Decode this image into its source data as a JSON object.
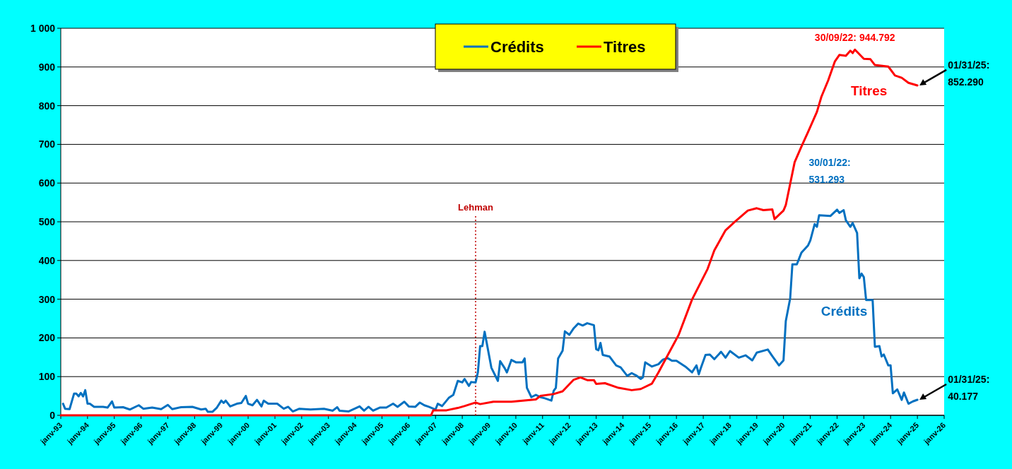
{
  "chart_data": {
    "type": "line",
    "xlim": [
      "1993-01",
      "2026-01"
    ],
    "xticks": [
      {
        "value": "1993-01",
        "label": "janv-93"
      },
      {
        "value": "1994-01",
        "label": "janv-94"
      },
      {
        "value": "1995-01",
        "label": "janv-95"
      },
      {
        "value": "1996-01",
        "label": "janv-96"
      },
      {
        "value": "1997-01",
        "label": "janv-97"
      },
      {
        "value": "1998-01",
        "label": "janv-98"
      },
      {
        "value": "1999-01",
        "label": "janv-99"
      },
      {
        "value": "2000-01",
        "label": "janv-00"
      },
      {
        "value": "2001-01",
        "label": "janv-01"
      },
      {
        "value": "2002-01",
        "label": "janv-02"
      },
      {
        "value": "2003-01",
        "label": "janv-03"
      },
      {
        "value": "2004-01",
        "label": "janv-04"
      },
      {
        "value": "2005-01",
        "label": "janv-05"
      },
      {
        "value": "2006-01",
        "label": "janv-06"
      },
      {
        "value": "2007-01",
        "label": "janv-07"
      },
      {
        "value": "2008-01",
        "label": "janv-08"
      },
      {
        "value": "2009-01",
        "label": "janv-09"
      },
      {
        "value": "2010-01",
        "label": "janv-10"
      },
      {
        "value": "2011-01",
        "label": "janv-11"
      },
      {
        "value": "2012-01",
        "label": "janv-12"
      },
      {
        "value": "2013-01",
        "label": "janv-13"
      },
      {
        "value": "2014-01",
        "label": "janv-14"
      },
      {
        "value": "2015-01",
        "label": "janv-15"
      },
      {
        "value": "2016-01",
        "label": "janv-16"
      },
      {
        "value": "2017-01",
        "label": "janv-17"
      },
      {
        "value": "2018-01",
        "label": "janv-18"
      },
      {
        "value": "2019-01",
        "label": "janv-19"
      },
      {
        "value": "2020-01",
        "label": "janv-20"
      },
      {
        "value": "2021-01",
        "label": "janv-21"
      },
      {
        "value": "2022-01",
        "label": "janv-22"
      },
      {
        "value": "2023-01",
        "label": "janv-23"
      },
      {
        "value": "2024-01",
        "label": "janv-24"
      },
      {
        "value": "2025-01",
        "label": "janv-25"
      },
      {
        "value": "2026-01",
        "label": "janv-26"
      }
    ],
    "ylim": [
      0,
      1000
    ],
    "yticks": [
      0,
      100,
      200,
      300,
      400,
      500,
      600,
      700,
      800,
      900,
      {
        "value": 1000,
        "label": "1 000"
      }
    ],
    "grid": "y",
    "legend": "top",
    "line_style": "solid",
    "marker": "none",
    "series": [
      {
        "name": "Crédits",
        "color": "#0070c0",
        "x": [
          "1993-02",
          "1993-03",
          "1993-05",
          "1993-07",
          "1993-08",
          "1993-09",
          "1993-10",
          "1993-11",
          "1993-12",
          "1994-01",
          "1994-02",
          "1994-04",
          "1994-08",
          "1994-10",
          "1994-12",
          "1995-01",
          "1995-05",
          "1995-08",
          "1995-12",
          "1996-02",
          "1996-06",
          "1996-10",
          "1997-01",
          "1997-03",
          "1997-07",
          "1997-12",
          "1998-04",
          "1998-06",
          "1998-07",
          "1998-09",
          "1998-11",
          "1999-01",
          "1999-02",
          "1999-03",
          "1999-05",
          "1999-08",
          "1999-10",
          "1999-12",
          "2000-01",
          "2000-03",
          "2000-05",
          "2000-07",
          "2000-08",
          "2000-10",
          "2001-02",
          "2001-05",
          "2001-07",
          "2001-09",
          "2001-12",
          "2002-05",
          "2002-11",
          "2003-03",
          "2003-05",
          "2003-06",
          "2003-10",
          "2004-03",
          "2004-05",
          "2004-07",
          "2004-09",
          "2004-12",
          "2005-03",
          "2005-06",
          "2005-08",
          "2005-11",
          "2006-01",
          "2006-04",
          "2006-06",
          "2006-08",
          "2006-10",
          "2007-01",
          "2007-02",
          "2007-04",
          "2007-07",
          "2007-09",
          "2007-11",
          "2008-01",
          "2008-02",
          "2008-04",
          "2008-05",
          "2008-07",
          "2008-08",
          "2008-09",
          "2008-10",
          "2008-11",
          "2009-02",
          "2009-05",
          "2009-06",
          "2009-08",
          "2009-09",
          "2009-11",
          "2010-01",
          "2010-04",
          "2010-05",
          "2010-06",
          "2010-08",
          "2010-10",
          "2010-12",
          "2011-02",
          "2011-05",
          "2011-06",
          "2011-07",
          "2011-08",
          "2011-10",
          "2011-11",
          "2012-01",
          "2012-03",
          "2012-05",
          "2012-07",
          "2012-09",
          "2012-12",
          "2013-01",
          "2013-02",
          "2013-03",
          "2013-04",
          "2013-07",
          "2013-10",
          "2013-12",
          "2014-03",
          "2014-05",
          "2014-07",
          "2014-09",
          "2014-10",
          "2014-11",
          "2015-02",
          "2015-05",
          "2015-07",
          "2015-09",
          "2015-11",
          "2016-01",
          "2016-05",
          "2016-08",
          "2016-10",
          "2016-11",
          "2016-12",
          "2017-02",
          "2017-04",
          "2017-06",
          "2017-09",
          "2017-11",
          "2018-01",
          "2018-05",
          "2018-08",
          "2018-11",
          "2019-01",
          "2019-06",
          "2019-08",
          "2019-11",
          "2020-01",
          "2020-02",
          "2020-04",
          "2020-05",
          "2020-07",
          "2020-09",
          "2020-12",
          "2021-01",
          "2021-03",
          "2021-04",
          "2021-05",
          "2021-10",
          "2022-01",
          "2022-02",
          "2022-04",
          "2022-05",
          "2022-07",
          "2022-08",
          "2022-10",
          "2022-11",
          "2022-12",
          "2023-01",
          "2023-02",
          "2023-05",
          "2023-06",
          "2023-08",
          "2023-09",
          "2023-10",
          "2023-12",
          "2024-01",
          "2024-02",
          "2024-04",
          "2024-06",
          "2024-07",
          "2024-09",
          "2024-11",
          "2025-01"
        ],
        "values": [
          30,
          17,
          16,
          56,
          56,
          49,
          58,
          49,
          65,
          30,
          30,
          22,
          22,
          20,
          36,
          20,
          21,
          15,
          26,
          17,
          20,
          16,
          27,
          16,
          21,
          22,
          15,
          17,
          9,
          9,
          20,
          38,
          32,
          38,
          23,
          30,
          32,
          50,
          30,
          26,
          40,
          23,
          38,
          30,
          30,
          17,
          22,
          10,
          17,
          15,
          17,
          12,
          21,
          12,
          10,
          23,
          12,
          22,
          12,
          20,
          20,
          30,
          22,
          35,
          23,
          22,
          33,
          26,
          22,
          15,
          30,
          24,
          45,
          53,
          89,
          85,
          94,
          76,
          86,
          85,
          111,
          179,
          179,
          216,
          123,
          89,
          140,
          122,
          111,
          143,
          137,
          137,
          147,
          71,
          47,
          53,
          47,
          44,
          38,
          63,
          71,
          147,
          167,
          217,
          208,
          225,
          237,
          232,
          238,
          233,
          171,
          168,
          187,
          156,
          152,
          129,
          124,
          102,
          109,
          103,
          94,
          98,
          137,
          126,
          132,
          144,
          148,
          141,
          141,
          126,
          111,
          129,
          106,
          123,
          156,
          157,
          145,
          164,
          149,
          166,
          149,
          155,
          142,
          162,
          170,
          153,
          129,
          142,
          243,
          302,
          390,
          390,
          420,
          439,
          452,
          494,
          487,
          517,
          515,
          531.293,
          523,
          530,
          504,
          487,
          497,
          471,
          354,
          366,
          357,
          298,
          298,
          177,
          179,
          152,
          157,
          129,
          129,
          57,
          67,
          40,
          59,
          30,
          36,
          40.177
        ]
      },
      {
        "name": "Titres",
        "color": "#ff0000",
        "x": [
          "1993-01",
          "2006-11",
          "2006-12",
          "2007-06",
          "2007-11",
          "2008-02",
          "2008-07",
          "2008-09",
          "2009-03",
          "2009-11",
          "2010-10",
          "2010-12",
          "2011-06",
          "2011-10",
          "2012-03",
          "2012-06",
          "2012-09",
          "2012-12",
          "2013-01",
          "2013-05",
          "2013-11",
          "2014-05",
          "2014-09",
          "2015-02",
          "2015-05",
          "2016-02",
          "2016-08",
          "2017-03",
          "2017-06",
          "2017-11",
          "2018-03",
          "2018-09",
          "2019-01",
          "2019-04",
          "2019-08",
          "2019-09",
          "2020-01",
          "2020-02",
          "2020-06",
          "2020-09",
          "2020-12",
          "2021-04",
          "2021-06",
          "2021-09",
          "2021-12",
          "2022-02",
          "2022-05",
          "2022-07",
          "2022-08",
          "2022-09",
          "2023-01",
          "2023-04",
          "2023-06",
          "2023-12",
          "2024-03",
          "2024-06",
          "2024-09",
          "2025-01"
        ],
        "values": [
          0,
          0,
          13,
          13,
          19,
          24,
          33,
          29,
          35,
          35,
          41,
          50,
          55,
          62,
          92,
          98,
          91,
          91,
          81,
          83,
          71,
          65,
          68,
          82,
          111,
          208,
          299,
          378,
          426,
          478,
          499,
          529,
          535,
          530,
          532,
          507,
          529,
          543,
          654,
          694,
          732,
          784,
          823,
          865,
          914,
          931,
          929,
          942,
          936,
          944.792,
          921,
          920,
          905,
          901,
          878,
          872,
          859,
          852.29
        ]
      }
    ],
    "ref_lines": [
      {
        "axis": "x",
        "value": "2008-07",
        "label": "Lehman",
        "color": "#c00000",
        "line_style": "dotted"
      }
    ],
    "annotations": [
      {
        "text": "30/09/22: 944.792",
        "x": "2022-09",
        "y": 944.792
      },
      {
        "text": "30/01/22: 531.293",
        "x": "2022-01",
        "y": 531.293
      },
      {
        "text": "01/31/25: 852.290",
        "x": "2025-01",
        "y": 852.29
      },
      {
        "text": "01/31/25: 40.177",
        "x": "2025-01",
        "y": 40.177
      }
    ]
  }
}
